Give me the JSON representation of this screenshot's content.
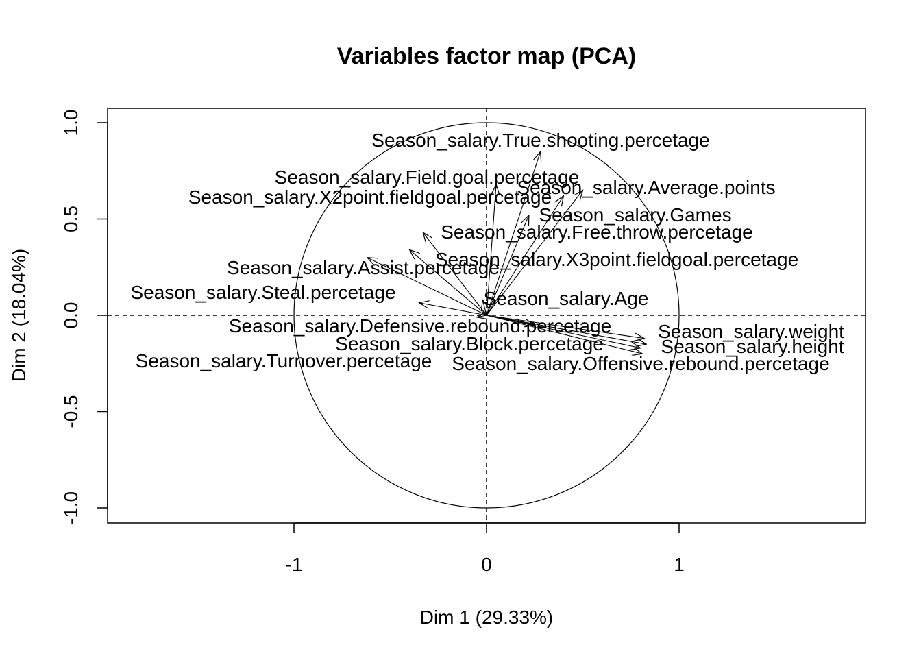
{
  "chart_data": {
    "type": "scatter",
    "subtype": "pca-variables-factor-map",
    "title": "Variables factor map (PCA)",
    "xlabel": "Dim 1 (29.33%)",
    "ylabel": "Dim 2 (18.04%)",
    "xlim": [
      -1.97,
      1.97
    ],
    "ylim": [
      -1.08,
      1.08
    ],
    "xticks": [
      -1,
      0,
      1
    ],
    "yticks": [
      -1.0,
      -0.5,
      0.0,
      0.5,
      1.0
    ],
    "xtick_labels": [
      "-1",
      "0",
      "1"
    ],
    "ytick_labels": [
      "-1.0",
      "-0.5",
      "0.0",
      "0.5",
      "1.0"
    ],
    "unit_circle": true,
    "reference_lines": [
      0,
      0
    ],
    "variables": [
      {
        "name": "Season_salary.True.shooting.percetage",
        "x": 0.28,
        "y": 0.85
      },
      {
        "name": "Season_salary.Field.goal.percetage",
        "x": 0.05,
        "y": 0.68
      },
      {
        "name": "Season_salary.Average.points",
        "x": 0.5,
        "y": 0.65
      },
      {
        "name": "Season_salary.X2point.fieldgoal.percetage",
        "x": 0.4,
        "y": 0.62
      },
      {
        "name": "Season_salary.Games",
        "x": 0.22,
        "y": 0.52
      },
      {
        "name": "Season_salary.Free.throw.percetage",
        "x": -0.33,
        "y": 0.43
      },
      {
        "name": "Season_salary.X3point.fieldgoal.percetage",
        "x": -0.4,
        "y": 0.34
      },
      {
        "name": "Season_salary.Assist.percetage",
        "x": -0.62,
        "y": 0.3
      },
      {
        "name": "Season_salary.Steal.percetage",
        "x": -0.35,
        "y": 0.065
      },
      {
        "name": "Season_salary.Age",
        "x": -0.02,
        "y": 0.08
      },
      {
        "name": "Season_salary.Defensive.rebound.percetage",
        "x": 0.25,
        "y": -0.05
      },
      {
        "name": "Season_salary.weight",
        "x": 0.82,
        "y": -0.12
      },
      {
        "name": "Season_salary.height",
        "x": 0.83,
        "y": -0.15
      },
      {
        "name": "Season_salary.Block.percetage",
        "x": 0.8,
        "y": -0.17
      },
      {
        "name": "Season_salary.Offensive.rebound.percetage",
        "x": 0.81,
        "y": -0.2
      },
      {
        "name": "Season_salary.Turnover.percetage",
        "x": -0.05,
        "y": -0.01
      }
    ]
  }
}
